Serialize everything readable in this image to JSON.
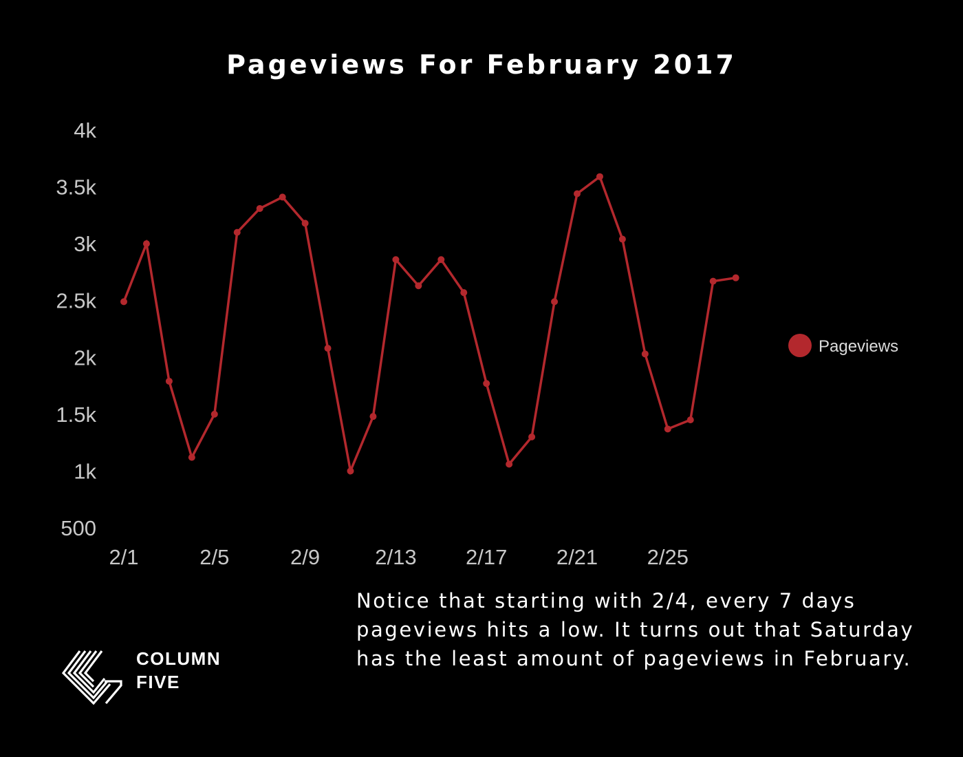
{
  "title": "Pageviews For February 2017",
  "annotation": "Notice that starting with 2/4, every 7 days pageviews hits a low. It turns out that Saturday has the least amount of pageviews in February.",
  "brand": {
    "line1": "COLUMN",
    "line2": "FIVE",
    "logo_icon": "column-five-logo-icon"
  },
  "colors": {
    "background": "#000000",
    "series": "#b3282d",
    "tick_text": "#c8c8c8",
    "title_text": "#ffffff"
  },
  "chart_data": {
    "type": "line",
    "title": "Pageviews For February 2017",
    "xlabel": "",
    "ylabel": "",
    "x": [
      "2/1",
      "2/2",
      "2/3",
      "2/4",
      "2/5",
      "2/6",
      "2/7",
      "2/8",
      "2/9",
      "2/10",
      "2/11",
      "2/12",
      "2/13",
      "2/14",
      "2/15",
      "2/16",
      "2/17",
      "2/18",
      "2/19",
      "2/20",
      "2/21",
      "2/22",
      "2/23",
      "2/24",
      "2/25",
      "2/26",
      "2/27",
      "2/28"
    ],
    "x_tick_labels": [
      "2/1",
      "2/5",
      "2/9",
      "2/13",
      "2/17",
      "2/21",
      "2/25"
    ],
    "y_tick_values": [
      500,
      1000,
      1500,
      2000,
      2500,
      3000,
      3500,
      4000
    ],
    "y_tick_labels": [
      "500",
      "1k",
      "1.5k",
      "2k",
      "2.5k",
      "3k",
      "3.5k",
      "4k"
    ],
    "ylim": [
      500,
      4000
    ],
    "grid": false,
    "legend_position": "right",
    "series": [
      {
        "name": "Pageviews",
        "color": "#b3282d",
        "values": [
          2490,
          3000,
          1790,
          1120,
          1500,
          3100,
          3310,
          3410,
          3180,
          2080,
          1000,
          1480,
          2860,
          2630,
          2860,
          2570,
          1770,
          1060,
          1300,
          2490,
          3440,
          3590,
          3040,
          2030,
          1370,
          1450,
          2670,
          2700
        ]
      }
    ]
  }
}
